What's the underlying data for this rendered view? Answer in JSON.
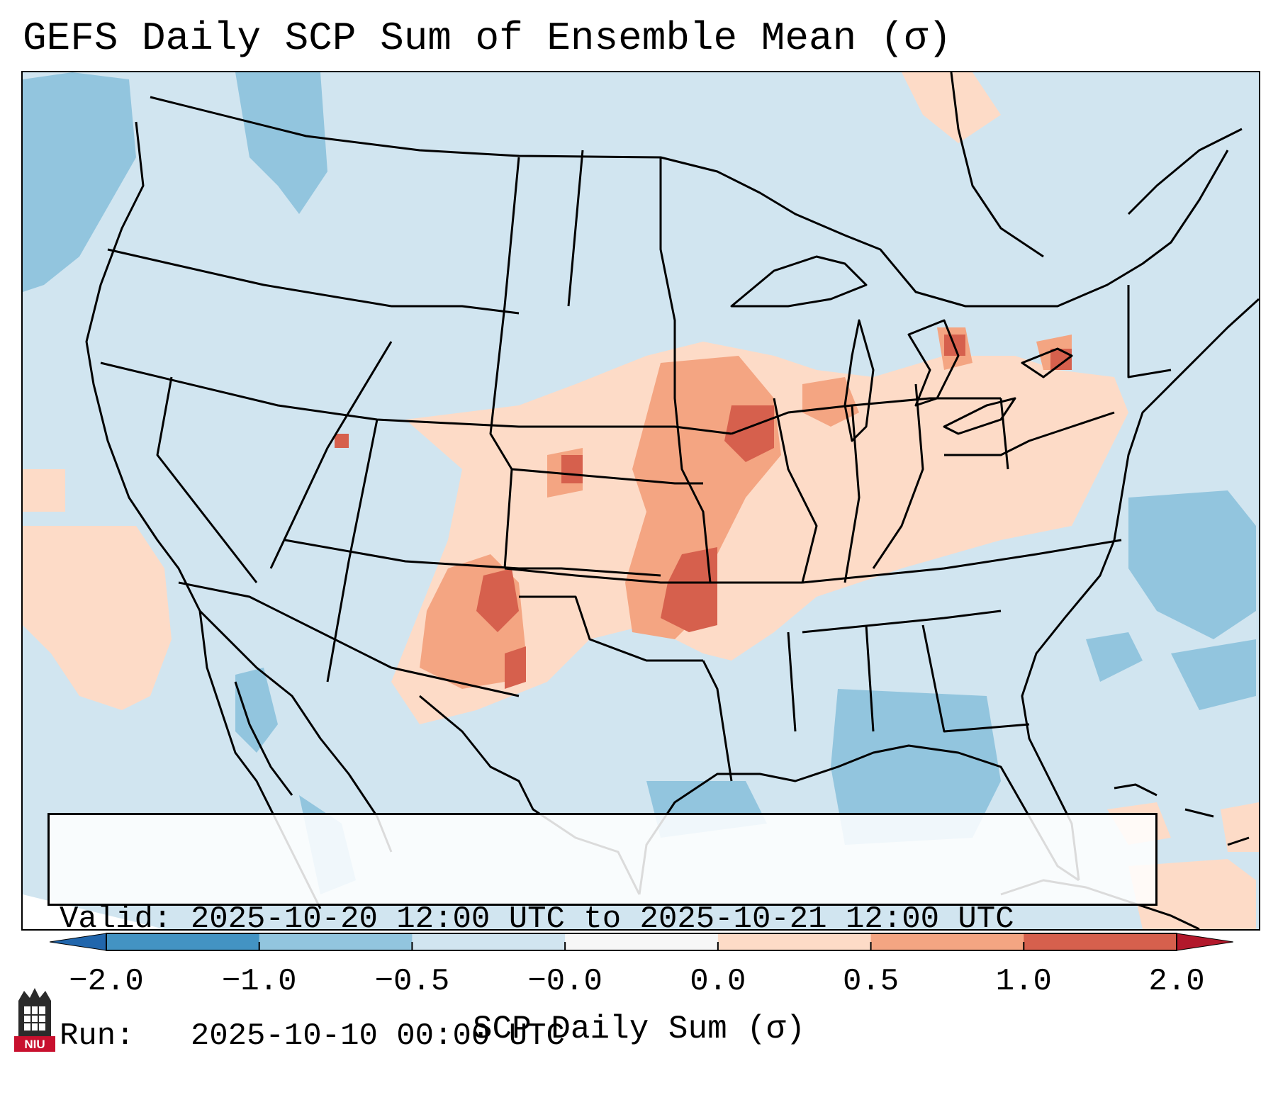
{
  "title": "GEFS Daily SCP Sum of Ensemble Mean (σ)",
  "info": {
    "valid_line": "Valid: 2025-10-20 12:00 UTC to 2025-10-21 12:00 UTC",
    "run_line": "Run:   2025-10-10 00:00 UTC"
  },
  "colorbar": {
    "label": "SCP Daily Sum (σ)",
    "ticks": [
      "−2.0",
      "−1.0",
      "−0.5",
      "−0.0",
      "0.0",
      "0.5",
      "1.0",
      "2.0"
    ],
    "bin_colors": [
      "#4393c3",
      "#92c5de",
      "#d1e5f0",
      "#f7f7f7",
      "#fddbc7",
      "#f4a582",
      "#d6604d"
    ],
    "under_color": "#2166ac",
    "over_color": "#b2182b"
  },
  "colors": {
    "background": "#d1e5f0",
    "neg_mid": "#92c5de",
    "pos_low": "#fddbc7",
    "pos_mid": "#f4a582",
    "pos_high": "#d6604d"
  },
  "logo": {
    "text": "NIU",
    "icon": "university-tower-icon"
  }
}
